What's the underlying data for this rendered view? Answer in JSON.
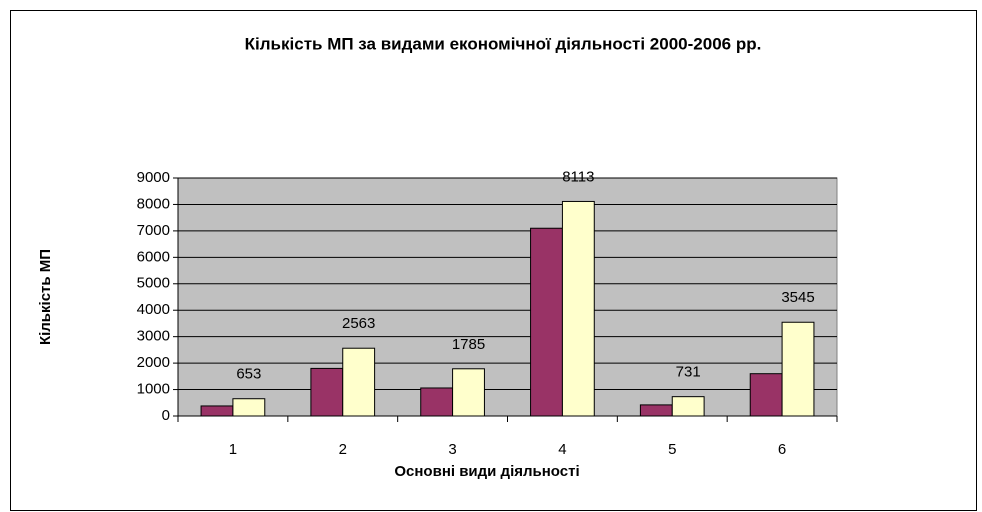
{
  "chart_data": {
    "type": "bar",
    "title": "Кількість МП за видами економічної діяльності 2000-2006 рр.",
    "x_label": "Основні види діяльності",
    "y_label": "Кількість МП",
    "categories": [
      "1",
      "2",
      "3",
      "4",
      "5",
      "6"
    ],
    "series": [
      {
        "color": "#993366",
        "values": [
          380,
          1800,
          1060,
          7100,
          420,
          1600
        ],
        "data_labels": false
      },
      {
        "color": "#ffffcc",
        "values": [
          653,
          2563,
          1785,
          8113,
          731,
          3545
        ],
        "data_labels": true
      }
    ],
    "ylim": [
      0,
      9000
    ],
    "yticks": [
      0,
      1000,
      2000,
      3000,
      4000,
      5000,
      6000,
      7000,
      8000,
      9000
    ],
    "grid": true,
    "plot_background": "#c0c0c0"
  }
}
